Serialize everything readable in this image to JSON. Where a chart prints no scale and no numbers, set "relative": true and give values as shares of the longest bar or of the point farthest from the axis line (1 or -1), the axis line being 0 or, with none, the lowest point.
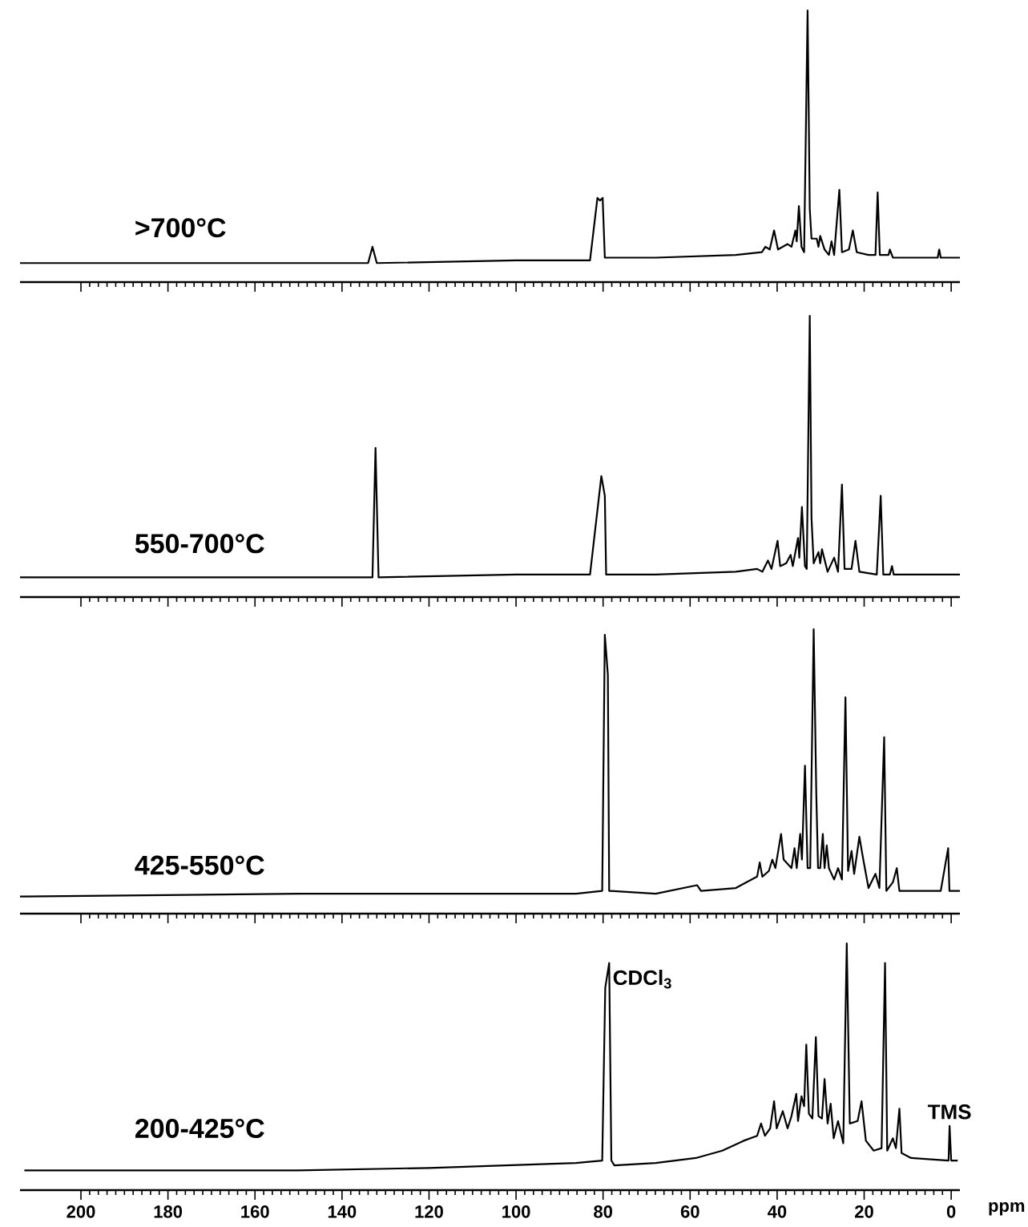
{
  "chart_data": [
    {
      "type": "line",
      "title": ">700°C",
      "relative": true,
      "xlim": [
        214,
        -2
      ],
      "xticks": [
        0,
        20,
        40,
        60,
        80,
        100,
        120,
        140,
        160,
        180,
        200
      ],
      "tick_labels": false,
      "x": [
        214,
        213,
        140,
        134,
        133,
        132,
        100,
        83,
        81.3,
        80.7,
        80.1,
        79.6,
        67.9,
        49.5,
        43.5,
        42.7,
        41.7,
        40.7,
        39.8,
        37.6,
        36.7,
        35.8,
        35.5,
        35.0,
        34.4,
        33.8,
        33.0,
        32.5,
        32.1,
        30.9,
        30.5,
        30.1,
        29.1,
        28.1,
        27.5,
        26.9,
        25.7,
        25.1,
        23.5,
        22.6,
        21.7,
        19.0,
        17.4,
        16.9,
        16.4,
        14.4,
        14.1,
        13.4,
        3.1,
        2.75,
        2.4,
        0.6,
        -2
      ],
      "series": [
        {
          "color": "#000000",
          "values": [
            0.07,
            0.07,
            0.07,
            0.07,
            0.13,
            0.07,
            0.08,
            0.08,
            0.31,
            0.3,
            0.31,
            0.09,
            0.09,
            0.1,
            0.11,
            0.13,
            0.12,
            0.19,
            0.12,
            0.14,
            0.13,
            0.19,
            0.15,
            0.28,
            0.13,
            0.11,
            1.0,
            0.27,
            0.16,
            0.16,
            0.13,
            0.17,
            0.12,
            0.1,
            0.15,
            0.1,
            0.34,
            0.11,
            0.12,
            0.19,
            0.11,
            0.1,
            0.1,
            0.33,
            0.1,
            0.1,
            0.12,
            0.09,
            0.09,
            0.12,
            0.09,
            0.09,
            0.09
          ]
        }
      ]
    },
    {
      "type": "line",
      "title": "550-700°C",
      "relative": true,
      "xlim": [
        214,
        -2
      ],
      "xticks": [
        0,
        20,
        40,
        60,
        80,
        100,
        120,
        140,
        160,
        180,
        200
      ],
      "tick_labels": false,
      "x": [
        214,
        213,
        140,
        133,
        132.3,
        131.6,
        100,
        83,
        80.4,
        79.6,
        79.3,
        67.9,
        49.5,
        44.6,
        43.4,
        42.1,
        41.3,
        39.9,
        39.3,
        37.9,
        36.9,
        36.4,
        35.2,
        34.9,
        34.3,
        33.6,
        33.2,
        32.5,
        32.1,
        31.6,
        30.5,
        30.1,
        29.7,
        28.4,
        26.9,
        26.0,
        25.1,
        24.5,
        22.9,
        22.0,
        21.1,
        17.1,
        16.2,
        15.6,
        14.1,
        13.6,
        13.2,
        0,
        -2
      ],
      "series": [
        {
          "color": "#000000",
          "values": [
            0.07,
            0.07,
            0.07,
            0.07,
            0.53,
            0.07,
            0.08,
            0.08,
            0.43,
            0.36,
            0.08,
            0.08,
            0.09,
            0.1,
            0.09,
            0.13,
            0.1,
            0.2,
            0.11,
            0.12,
            0.15,
            0.11,
            0.21,
            0.14,
            0.32,
            0.11,
            0.1,
            1.0,
            0.28,
            0.12,
            0.16,
            0.12,
            0.17,
            0.09,
            0.14,
            0.09,
            0.4,
            0.1,
            0.1,
            0.2,
            0.09,
            0.08,
            0.36,
            0.08,
            0.08,
            0.11,
            0.08,
            0.08,
            0.08
          ]
        }
      ]
    },
    {
      "type": "line",
      "title": "425-550°C",
      "relative": true,
      "xlim": [
        214,
        -2
      ],
      "xticks": [
        0,
        20,
        40,
        60,
        80,
        100,
        120,
        140,
        160,
        180,
        200
      ],
      "tick_labels": false,
      "x": [
        214,
        213,
        150,
        100,
        86.2,
        80.2,
        79.6,
        78.9,
        78.6,
        67.9,
        58.4,
        57.5,
        49.5,
        47.1,
        44.6,
        44.0,
        43.4,
        41.9,
        41.1,
        40.4,
        39.1,
        38.5,
        36.7,
        36.0,
        35.5,
        34.7,
        34.3,
        33.6,
        33.0,
        32.4,
        31.6,
        31.0,
        30.6,
        30.1,
        29.5,
        29.1,
        28.6,
        28.1,
        26.9,
        26.0,
        25.1,
        24.3,
        23.7,
        22.9,
        22.3,
        21.1,
        20.2,
        19.0,
        17.4,
        16.5,
        15.4,
        14.9,
        13.4,
        12.5,
        11.9,
        2.4,
        0.7,
        0.4,
        -1.2,
        -2
      ],
      "series": [
        {
          "color": "#000000",
          "values": [
            0.06,
            0.06,
            0.07,
            0.07,
            0.07,
            0.08,
            0.98,
            0.84,
            0.08,
            0.07,
            0.1,
            0.08,
            0.09,
            0.11,
            0.13,
            0.18,
            0.13,
            0.15,
            0.19,
            0.16,
            0.28,
            0.19,
            0.16,
            0.23,
            0.16,
            0.28,
            0.19,
            0.52,
            0.16,
            0.16,
            1.0,
            0.42,
            0.16,
            0.16,
            0.28,
            0.16,
            0.24,
            0.16,
            0.12,
            0.16,
            0.12,
            0.76,
            0.15,
            0.22,
            0.14,
            0.27,
            0.19,
            0.09,
            0.14,
            0.09,
            0.62,
            0.08,
            0.11,
            0.16,
            0.08,
            0.08,
            0.23,
            0.08,
            0.08,
            0.08
          ]
        }
      ]
    },
    {
      "type": "line",
      "title": "200-425°C",
      "relative": true,
      "xlim": [
        214,
        -2
      ],
      "xticks": [
        0,
        20,
        40,
        60,
        80,
        100,
        120,
        140,
        160,
        180,
        200
      ],
      "xlabel": "ppm",
      "x": [
        213,
        180,
        150,
        120,
        86.2,
        80.2,
        79.5,
        78.6,
        78.1,
        77.4,
        67.9,
        58.7,
        52.6,
        47.7,
        44.6,
        43.7,
        42.8,
        41.6,
        40.7,
        40.1,
        38.7,
        37.6,
        36.7,
        35.6,
        35.2,
        34.4,
        33.8,
        33.3,
        32.7,
        31.9,
        31.1,
        30.5,
        29.7,
        29.1,
        28.4,
        27.7,
        27.0,
        26.0,
        24.8,
        24.0,
        23.3,
        21.5,
        20.6,
        19.6,
        17.8,
        16.0,
        15.2,
        14.7,
        13.4,
        12.7,
        11.9,
        11.4,
        9.2,
        0.6,
        0.37,
        0,
        -1.5
      ],
      "series": [
        {
          "color": "#000000",
          "values": [
            0.08,
            0.08,
            0.08,
            0.09,
            0.11,
            0.12,
            0.82,
            0.92,
            0.12,
            0.1,
            0.11,
            0.13,
            0.16,
            0.2,
            0.22,
            0.27,
            0.22,
            0.25,
            0.36,
            0.25,
            0.32,
            0.25,
            0.3,
            0.39,
            0.28,
            0.38,
            0.34,
            0.59,
            0.31,
            0.29,
            0.62,
            0.3,
            0.29,
            0.45,
            0.27,
            0.35,
            0.21,
            0.28,
            0.19,
            1.0,
            0.27,
            0.28,
            0.36,
            0.2,
            0.16,
            0.17,
            0.92,
            0.16,
            0.21,
            0.17,
            0.33,
            0.15,
            0.13,
            0.12,
            0.26,
            0.12,
            0.12
          ]
        }
      ],
      "annotations": [
        {
          "text": "CDCl$_{3}$",
          "x": 78.6,
          "y": 0.92
        },
        {
          "text": "TMS",
          "x": 0.37,
          "y": 0.26
        }
      ]
    }
  ]
}
